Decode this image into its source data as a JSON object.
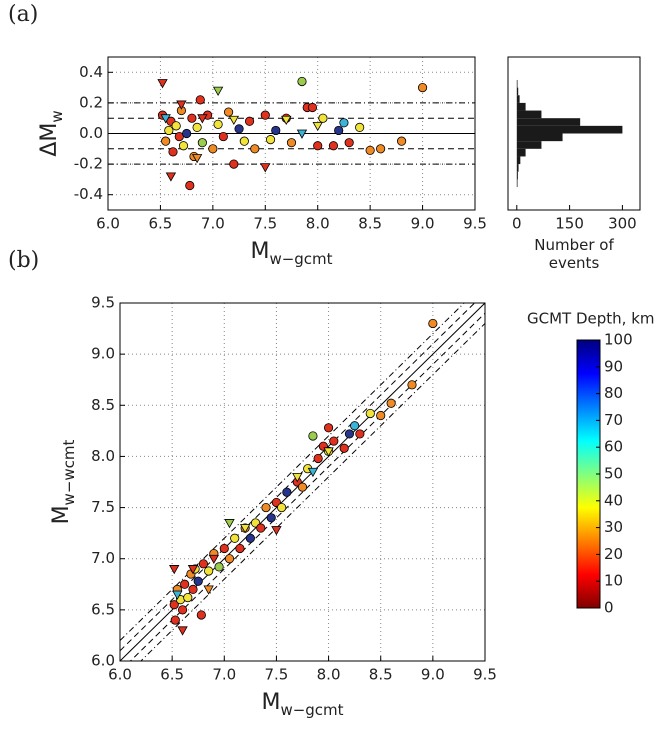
{
  "chart_data": [
    {
      "type": "scatter",
      "panel_label": "(a)",
      "xlabel": "M",
      "xlabel_sub": "w−gcmt",
      "ylabel": "ΔM",
      "ylabel_sub": "w",
      "xlim": [
        6.0,
        9.5
      ],
      "ylim": [
        -0.5,
        0.5
      ],
      "grid": true,
      "xticks": [
        {
          "value": 6.0,
          "label": "6.0"
        },
        {
          "value": 6.5,
          "label": "6.5"
        },
        {
          "value": 7.0,
          "label": "7.0"
        },
        {
          "value": 7.5,
          "label": "7.5"
        },
        {
          "value": 8.0,
          "label": "8.0"
        },
        {
          "value": 8.5,
          "label": "8.5"
        },
        {
          "value": 9.0,
          "label": "9.0"
        },
        {
          "value": 9.5,
          "label": "9.5"
        }
      ],
      "yticks": [
        {
          "value": -0.4,
          "label": "-0.4"
        },
        {
          "value": -0.2,
          "label": "-0.2"
        },
        {
          "value": 0.0,
          "label": "0.0"
        },
        {
          "value": 0.2,
          "label": "0.2"
        },
        {
          "value": 0.4,
          "label": "0.4"
        }
      ],
      "ref_lines": [
        {
          "value": 0,
          "style": "solid"
        },
        {
          "value": 0.1,
          "style": "dashed"
        },
        {
          "value": -0.1,
          "style": "dashed"
        },
        {
          "value": 0.2,
          "style": "dashdot"
        },
        {
          "value": -0.2,
          "style": "dashdot"
        }
      ],
      "series": [
        {
          "marker": "circle",
          "x": [
            6.52,
            6.55,
            6.58,
            6.6,
            6.62,
            6.65,
            6.68,
            6.7,
            6.72,
            6.75,
            6.78,
            6.8,
            6.82,
            6.85,
            6.88,
            6.9,
            6.95,
            7.0,
            7.05,
            7.1,
            7.15,
            7.2,
            7.25,
            7.3,
            7.35,
            7.4,
            7.5,
            7.55,
            7.6,
            7.7,
            7.75,
            7.85,
            7.9,
            8.0,
            8.05,
            8.2,
            8.25,
            8.3,
            8.4,
            8.5,
            8.6,
            8.8,
            9.0,
            8.15,
            7.95
          ],
          "values": [
            0.12,
            -0.05,
            0.02,
            0.08,
            -0.12,
            0.05,
            -0.02,
            0.15,
            -0.08,
            0.0,
            -0.34,
            0.1,
            -0.15,
            0.04,
            0.22,
            -0.06,
            0.12,
            -0.1,
            0.06,
            -0.02,
            0.14,
            -0.2,
            0.03,
            -0.05,
            0.08,
            -0.1,
            0.12,
            -0.04,
            0.02,
            0.1,
            -0.06,
            0.34,
            0.17,
            -0.08,
            0.1,
            0.02,
            0.07,
            -0.06,
            0.04,
            -0.11,
            -0.1,
            -0.05,
            0.3,
            -0.08,
            0.17
          ],
          "colors": [
            "#e0301e",
            "#f08a24",
            "#f2e33a",
            "#e0301e",
            "#e0301e",
            "#f2e33a",
            "#e0301e",
            "#f08a24",
            "#f2e33a",
            "#27348b",
            "#e0301e",
            "#e0301e",
            "#f08a24",
            "#f2e33a",
            "#e0301e",
            "#9ccc4c",
            "#e0301e",
            "#f08a24",
            "#f2e33a",
            "#e0301e",
            "#f08a24",
            "#e0301e",
            "#27348b",
            "#f2e33a",
            "#e0301e",
            "#f08a24",
            "#e0301e",
            "#f2e33a",
            "#27348b",
            "#e0301e",
            "#f08a24",
            "#9ccc4c",
            "#e0301e",
            "#e0301e",
            "#f2e33a",
            "#27348b",
            "#3cb4d8",
            "#e0301e",
            "#f2e33a",
            "#f08a24",
            "#f08a24",
            "#f08a24",
            "#f08a24",
            "#e0301e",
            "#e0301e"
          ]
        },
        {
          "marker": "triangle",
          "x": [
            6.52,
            6.55,
            6.6,
            6.7,
            6.9,
            7.05,
            7.2,
            7.5,
            7.7,
            7.85,
            8.0,
            6.85
          ],
          "values": [
            0.33,
            0.1,
            -0.28,
            0.19,
            0.1,
            0.28,
            0.09,
            -0.22,
            0.09,
            0.0,
            0.05,
            -0.16
          ],
          "colors": [
            "#e0301e",
            "#3cb4d8",
            "#e0301e",
            "#e0301e",
            "#e0301e",
            "#9ccc4c",
            "#f2e33a",
            "#e0301e",
            "#f2e33a",
            "#3cb4d8",
            "#f2e33a",
            "#f08a24"
          ]
        }
      ]
    },
    {
      "type": "histogram",
      "orientation": "horizontal",
      "xlabel": "Number of events",
      "color": "#1a1a1a",
      "xlim": [
        -25,
        350
      ],
      "ylim": [
        -0.5,
        0.5
      ],
      "xticks": [
        0,
        150,
        300
      ],
      "grid": false,
      "bins": [
        -0.35,
        -0.3,
        -0.25,
        -0.2,
        -0.15,
        -0.1,
        -0.05,
        0.0,
        0.05,
        0.1,
        0.15,
        0.2,
        0.25,
        0.3,
        0.35
      ],
      "counts": [
        2,
        3,
        5,
        10,
        25,
        70,
        130,
        300,
        180,
        70,
        25,
        8,
        4,
        2
      ]
    },
    {
      "type": "scatter",
      "panel_label": "(b)",
      "xlabel": "M",
      "xlabel_sub": "w−gcmt",
      "ylabel": "M",
      "ylabel_sub": "w−wcmt",
      "xlim": [
        6.0,
        9.5
      ],
      "ylim": [
        6.0,
        9.5
      ],
      "grid": true,
      "xticks": [
        {
          "value": 6.0,
          "label": "6.0"
        },
        {
          "value": 6.5,
          "label": "6.5"
        },
        {
          "value": 7.0,
          "label": "7.0"
        },
        {
          "value": 7.5,
          "label": "7.5"
        },
        {
          "value": 8.0,
          "label": "8.0"
        },
        {
          "value": 8.5,
          "label": "8.5"
        },
        {
          "value": 9.0,
          "label": "9.0"
        },
        {
          "value": 9.5,
          "label": "9.5"
        }
      ],
      "yticks": [
        {
          "value": 6.0,
          "label": "6.0"
        },
        {
          "value": 6.5,
          "label": "6.5"
        },
        {
          "value": 7.0,
          "label": "7.0"
        },
        {
          "value": 7.5,
          "label": "7.5"
        },
        {
          "value": 8.0,
          "label": "8.0"
        },
        {
          "value": 8.5,
          "label": "8.5"
        },
        {
          "value": 9.0,
          "label": "9.0"
        },
        {
          "value": 9.5,
          "label": "9.5"
        }
      ],
      "diagonal_offsets": [
        {
          "value": 0,
          "style": "solid"
        },
        {
          "value": 0.1,
          "style": "dashed"
        },
        {
          "value": -0.1,
          "style": "dashed"
        },
        {
          "value": 0.2,
          "style": "dashdot"
        },
        {
          "value": -0.2,
          "style": "dashdot"
        }
      ],
      "series": [
        {
          "marker": "circle",
          "x": [
            6.52,
            6.53,
            6.55,
            6.58,
            6.6,
            6.62,
            6.65,
            6.68,
            6.7,
            6.72,
            6.75,
            6.78,
            6.8,
            6.85,
            6.9,
            6.95,
            7.0,
            7.05,
            7.1,
            7.15,
            7.2,
            7.25,
            7.3,
            7.35,
            7.4,
            7.45,
            7.5,
            7.55,
            7.6,
            7.7,
            7.75,
            7.8,
            7.85,
            7.9,
            7.95,
            8.0,
            8.05,
            8.15,
            8.2,
            8.25,
            8.3,
            8.4,
            8.5,
            8.6,
            8.8,
            9.0,
            8.0
          ],
          "values": [
            6.55,
            6.4,
            6.7,
            6.6,
            6.5,
            6.75,
            6.62,
            6.85,
            6.7,
            6.9,
            6.78,
            6.45,
            6.95,
            6.88,
            7.05,
            6.92,
            7.1,
            7.0,
            7.2,
            7.1,
            7.3,
            7.2,
            7.35,
            7.3,
            7.5,
            7.4,
            7.55,
            7.5,
            7.65,
            7.75,
            7.7,
            7.88,
            8.2,
            7.98,
            8.1,
            8.05,
            8.15,
            8.08,
            8.22,
            8.3,
            8.22,
            8.42,
            8.4,
            8.52,
            8.7,
            9.3,
            8.28
          ],
          "colors": [
            "#e0301e",
            "#e0301e",
            "#f08a24",
            "#f2e33a",
            "#e0301e",
            "#e0301e",
            "#f2e33a",
            "#f08a24",
            "#e0301e",
            "#f2e33a",
            "#27348b",
            "#e0301e",
            "#e0301e",
            "#f2e33a",
            "#f08a24",
            "#9ccc4c",
            "#e0301e",
            "#f08a24",
            "#f2e33a",
            "#e0301e",
            "#f08a24",
            "#27348b",
            "#f2e33a",
            "#e0301e",
            "#f08a24",
            "#27348b",
            "#e0301e",
            "#f2e33a",
            "#27348b",
            "#e0301e",
            "#f08a24",
            "#f2e33a",
            "#9ccc4c",
            "#e0301e",
            "#e0301e",
            "#f2e33a",
            "#e0301e",
            "#e0301e",
            "#27348b",
            "#3cb4d8",
            "#e0301e",
            "#f2e33a",
            "#f08a24",
            "#f08a24",
            "#f08a24",
            "#f08a24",
            "#e0301e"
          ]
        },
        {
          "marker": "triangle",
          "x": [
            6.52,
            6.55,
            6.6,
            6.7,
            6.9,
            7.05,
            7.2,
            7.5,
            7.7,
            7.85,
            8.0,
            6.85
          ],
          "values": [
            6.9,
            6.65,
            6.3,
            6.9,
            7.0,
            7.35,
            7.3,
            7.28,
            7.8,
            7.85,
            8.05,
            6.7
          ],
          "colors": [
            "#e0301e",
            "#3cb4d8",
            "#e0301e",
            "#e0301e",
            "#e0301e",
            "#9ccc4c",
            "#f2e33a",
            "#e0301e",
            "#f2e33a",
            "#3cb4d8",
            "#f2e33a",
            "#f08a24"
          ]
        }
      ]
    },
    {
      "type": "colorbar",
      "label": "GCMT Depth, km",
      "lim": [
        0,
        100
      ],
      "colors": [
        "#7f0000",
        "#ff0000",
        "#ff8000",
        "#ffff00",
        "#80ff80",
        "#00ffff",
        "#0080ff",
        "#0000ff",
        "#00007f"
      ],
      "ticks": [
        0,
        10,
        20,
        30,
        40,
        50,
        60,
        70,
        80,
        90,
        100
      ]
    }
  ]
}
